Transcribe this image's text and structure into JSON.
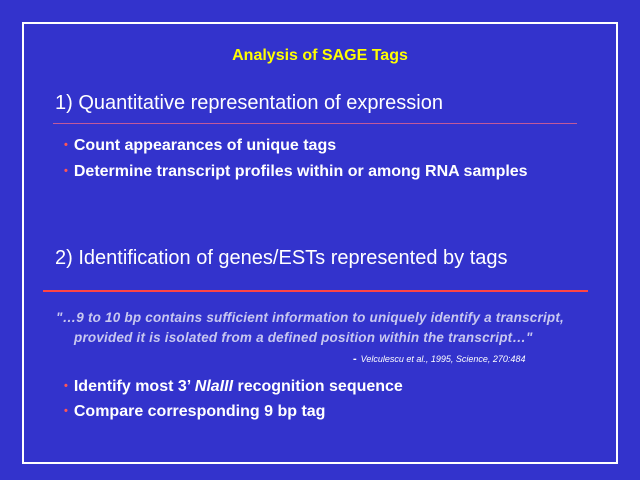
{
  "slide": {
    "title": "Analysis of SAGE Tags",
    "section1": {
      "heading": "1)  Quantitative representation of expression",
      "bullets": [
        "Count appearances of unique tags",
        "Determine transcript profiles within or among RNA samples"
      ]
    },
    "section2": {
      "heading": "2)  Identification of genes/ESTs represented by tags",
      "quote_line1": "\"…9 to 10 bp contains sufficient information to uniquely identify a transcript,",
      "quote_line2": "provided it is isolated from a defined position within the transcript…\"",
      "citation_dash": "-",
      "citation": "Velculescu et al., 1995, Science, 270:484",
      "bullet1_pre": "Identify most 3’ ",
      "bullet1_em": "NlaIII",
      "bullet1_post": " recognition sequence",
      "bullet2": "Compare corresponding 9 bp tag"
    },
    "bullet_glyph": "•",
    "colors": {
      "background": "#3333cc",
      "title": "#ffff00",
      "rule1": "#c05a9a",
      "rule2": "#ff4444",
      "bullet": "#ff5555"
    }
  }
}
